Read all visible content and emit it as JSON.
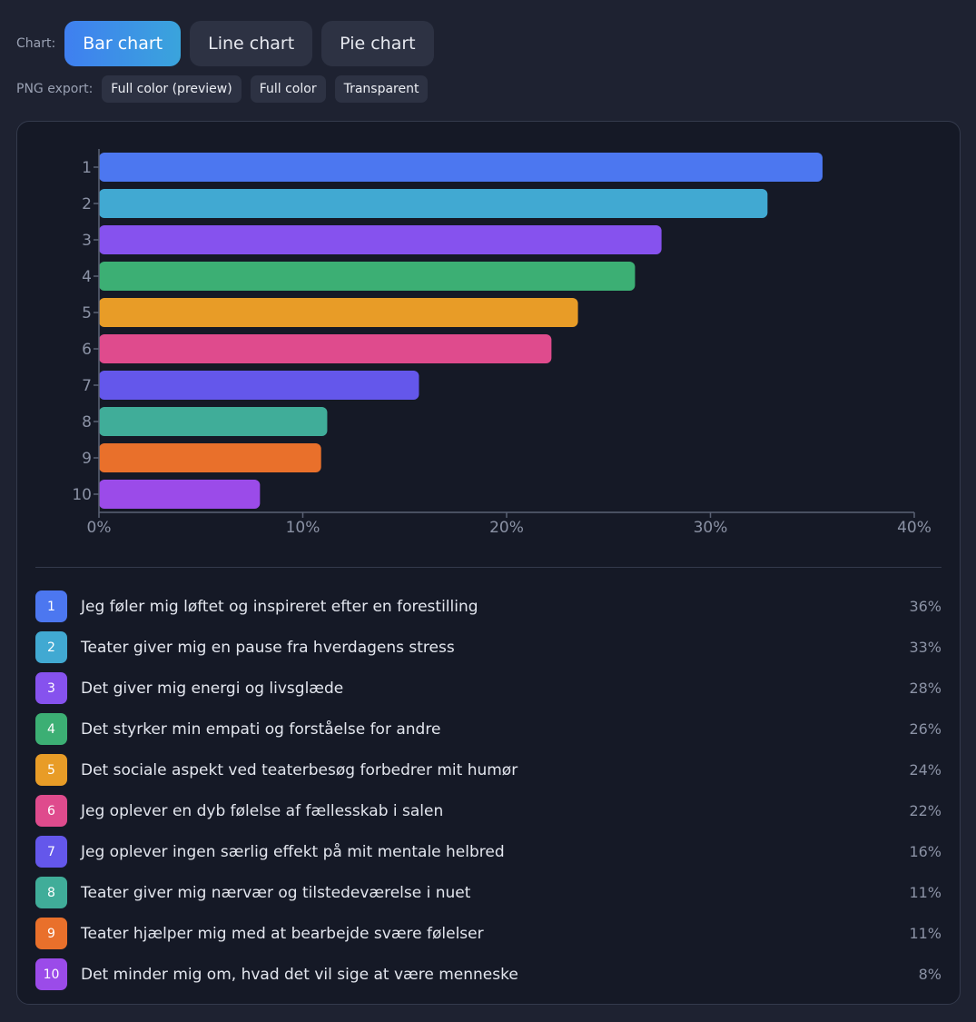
{
  "toolbar": {
    "chart_label": "Chart:",
    "tabs": [
      {
        "label": "Bar chart",
        "active": true
      },
      {
        "label": "Line chart",
        "active": false
      },
      {
        "label": "Pie chart",
        "active": false
      }
    ]
  },
  "export": {
    "label": "PNG export:",
    "buttons": [
      "Full color (preview)",
      "Full color",
      "Transparent"
    ]
  },
  "colors": {
    "page_bg": "#1e2231",
    "card_bg": "#151926",
    "axis": "#5b6275",
    "tick_text": "#8b92a5",
    "active_tab": "#3f7ff0"
  },
  "chart_data": {
    "type": "bar",
    "orientation": "horizontal",
    "categories": [
      "1",
      "2",
      "3",
      "4",
      "5",
      "6",
      "7",
      "8",
      "9",
      "10"
    ],
    "values": [
      35.5,
      32.8,
      27.6,
      26.3,
      23.5,
      22.2,
      15.7,
      11.2,
      10.9,
      7.9
    ],
    "xlim": [
      0,
      40
    ],
    "xticks": [
      "0%",
      "10%",
      "20%",
      "30%",
      "40%"
    ],
    "grid": false,
    "bar_colors": [
      "#4c77f0",
      "#41a9d2",
      "#8652ee",
      "#3caf74",
      "#e89c27",
      "#df4b8d",
      "#6457eb",
      "#40ad99",
      "#e9702b",
      "#9b4be9"
    ]
  },
  "legend": [
    {
      "num": "1",
      "label": "Jeg føler mig løftet og inspireret efter en forestilling",
      "pct": "36%"
    },
    {
      "num": "2",
      "label": "Teater giver mig en pause fra hverdagens stress",
      "pct": "33%"
    },
    {
      "num": "3",
      "label": "Det giver mig energi og livsglæde",
      "pct": "28%"
    },
    {
      "num": "4",
      "label": "Det styrker min empati og forståelse for andre",
      "pct": "26%"
    },
    {
      "num": "5",
      "label": "Det sociale aspekt ved teaterbesøg forbedrer mit humør",
      "pct": "24%"
    },
    {
      "num": "6",
      "label": "Jeg oplever en dyb følelse af fællesskab i salen",
      "pct": "22%"
    },
    {
      "num": "7",
      "label": "Jeg oplever ingen særlig effekt på mit mentale helbred",
      "pct": "16%"
    },
    {
      "num": "8",
      "label": "Teater giver mig nærvær og tilstedeværelse i nuet",
      "pct": "11%"
    },
    {
      "num": "9",
      "label": "Teater hjælper mig med at bearbejde svære følelser",
      "pct": "11%"
    },
    {
      "num": "10",
      "label": "Det minder mig om, hvad det vil sige at være menneske",
      "pct": "8%"
    }
  ]
}
